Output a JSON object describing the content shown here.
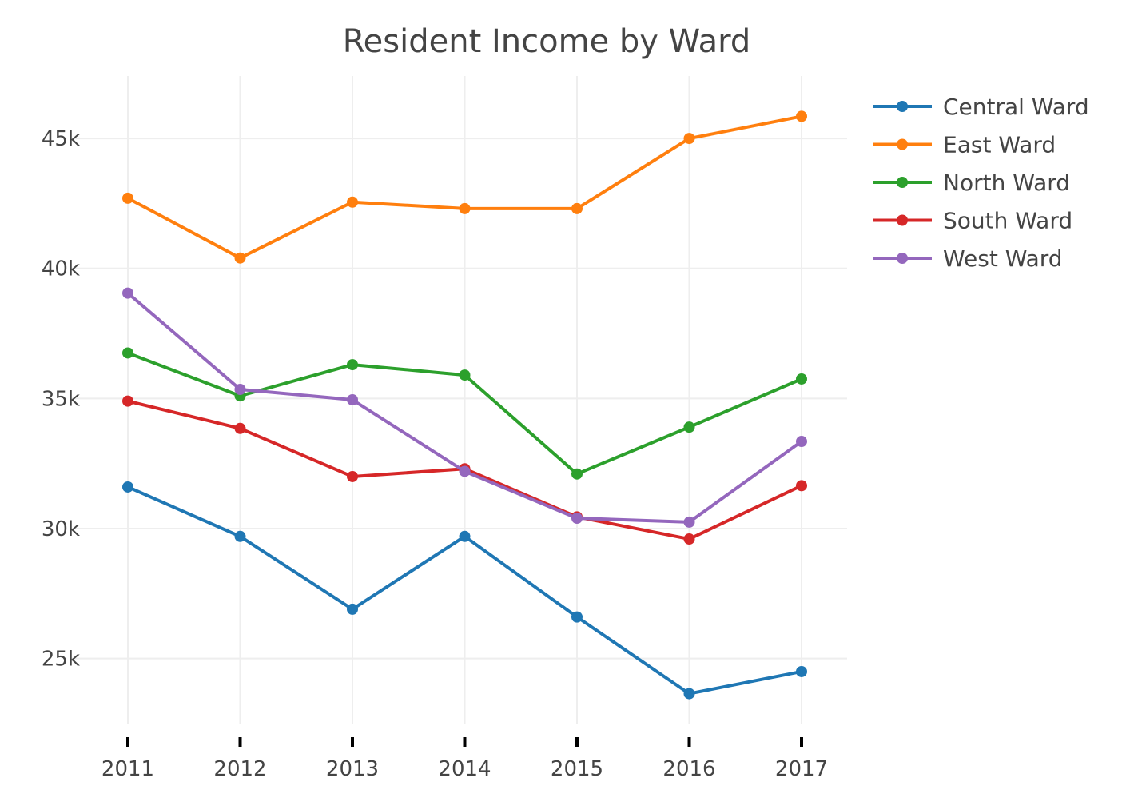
{
  "chart_data": {
    "type": "line",
    "title": "Resident Income by Ward",
    "xlabel": "",
    "ylabel": "",
    "x": [
      2011,
      2012,
      2013,
      2014,
      2015,
      2016,
      2017
    ],
    "x_tick_labels": [
      "2011",
      "2012",
      "2013",
      "2014",
      "2015",
      "2016",
      "2017"
    ],
    "y_ticks": [
      25000,
      30000,
      35000,
      40000,
      45000
    ],
    "y_tick_labels": [
      "25k",
      "30k",
      "35k",
      "40k",
      "45k"
    ],
    "ylim": [
      22500,
      47400
    ],
    "grid": true,
    "legend_position": "top-right",
    "series": [
      {
        "name": "Central Ward",
        "color": "#1f77b4",
        "values": [
          31600,
          29700,
          26900,
          29700,
          26600,
          23650,
          24500
        ]
      },
      {
        "name": "East Ward",
        "color": "#ff7f0e",
        "values": [
          42700,
          40400,
          42550,
          42300,
          42300,
          45000,
          45850
        ]
      },
      {
        "name": "North Ward",
        "color": "#2ca02c",
        "values": [
          36750,
          35100,
          36300,
          35900,
          32100,
          33900,
          35750
        ]
      },
      {
        "name": "South Ward",
        "color": "#d62728",
        "values": [
          34900,
          33850,
          32000,
          32300,
          30450,
          29600,
          31650
        ]
      },
      {
        "name": "West Ward",
        "color": "#9467bd",
        "values": [
          39050,
          35350,
          34950,
          32200,
          30400,
          30250,
          33350
        ]
      }
    ]
  }
}
